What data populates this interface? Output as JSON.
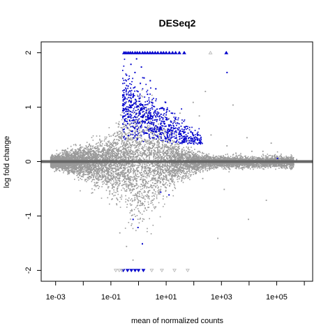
{
  "chart_data": {
    "type": "scatter",
    "title": "DESeq2",
    "xlabel": "mean of normalized counts",
    "ylabel": "log fold change",
    "x_scale": "log10",
    "xlim": [
      0.0003,
      2000000
    ],
    "ylim": [
      -2.2,
      2.2
    ],
    "xticks": [
      0.001,
      0.01,
      0.1,
      1,
      10,
      100,
      1000,
      10000,
      100000,
      1000000
    ],
    "xtick_labels": [
      {
        "value": 0.001,
        "label": "1e-03"
      },
      {
        "value": 0.1,
        "label": "1e-01"
      },
      {
        "value": 10,
        "label": "1e+01"
      },
      {
        "value": 1000,
        "label": "1e+03"
      },
      {
        "value": 100000,
        "label": "1e+05"
      }
    ],
    "yticks": [
      {
        "value": 2,
        "label": "2"
      },
      {
        "value": 1,
        "label": "1"
      },
      {
        "value": 0,
        "label": "0"
      },
      {
        "value": -1,
        "label": "-1"
      },
      {
        "value": -2,
        "label": "-2"
      }
    ],
    "reference_line": {
      "y": 0
    },
    "grid": false,
    "legend": "none",
    "colors": {
      "not_significant": "#9a9a9a",
      "significant": "#0000cc",
      "reference_line": "#666666",
      "open_triangle": "#b0b0b0"
    },
    "series": [
      {
        "points": [
          [
            0.5,
            0.42
          ],
          [
            0.8,
            0.35
          ],
          [
            1.2,
            0.5
          ],
          [
            2,
            0.62
          ],
          [
            3,
            0.55
          ],
          [
            5,
            0.7
          ],
          [
            8,
            0.6
          ],
          [
            12,
            0.8
          ],
          [
            20,
            0.75
          ],
          [
            30,
            0.9
          ],
          [
            60,
            0.4
          ],
          [
            150,
            0.85
          ],
          [
            400,
            0.5
          ],
          [
            1500,
            0.3
          ],
          [
            8000,
            0.45
          ],
          [
            30000,
            0.2
          ],
          [
            0.4,
            -0.45
          ],
          [
            0.8,
            -0.6
          ],
          [
            1.5,
            -0.9
          ],
          [
            3,
            -0.7
          ],
          [
            6,
            -0.5
          ],
          [
            15,
            -0.35
          ],
          [
            40,
            -0.25
          ],
          [
            200,
            -0.3
          ],
          [
            1200,
            -0.5
          ],
          [
            9000,
            -1.05
          ],
          [
            0.3,
            0.3
          ],
          [
            0.3,
            -0.3
          ],
          [
            90,
            1.1
          ],
          [
            250,
            1.3
          ],
          [
            2500,
            1.05
          ],
          [
            12000,
            0.2
          ],
          [
            60000,
            0.35
          ],
          [
            500000,
            0.05
          ],
          [
            0.2,
            -1.3
          ],
          [
            0.35,
            -1.55
          ],
          [
            0.6,
            -1.8
          ],
          [
            700,
            -1.4
          ],
          [
            40000,
            -0.7
          ]
        ]
      },
      {
        "points": [
          [
            0.35,
            1.6
          ],
          [
            0.4,
            1.4
          ],
          [
            0.5,
            1.8
          ],
          [
            0.6,
            1.2
          ],
          [
            0.7,
            1.65
          ],
          [
            0.9,
            1.3
          ],
          [
            1.0,
            0.9
          ],
          [
            1.1,
            1.45
          ],
          [
            1.3,
            1.05
          ],
          [
            1.5,
            1.55
          ],
          [
            1.8,
            0.95
          ],
          [
            2.0,
            1.25
          ],
          [
            2.3,
            0.8
          ],
          [
            2.8,
            1.1
          ],
          [
            3.2,
            0.7
          ],
          [
            3.8,
            0.95
          ],
          [
            4.5,
            0.65
          ],
          [
            5.5,
            0.85
          ],
          [
            6.5,
            0.6
          ],
          [
            8,
            0.75
          ],
          [
            10,
            0.55
          ],
          [
            12,
            0.68
          ],
          [
            15,
            0.5
          ],
          [
            18,
            0.62
          ],
          [
            22,
            0.45
          ],
          [
            28,
            0.55
          ],
          [
            40,
            0.42
          ],
          [
            55,
            0.48
          ],
          [
            80,
            0.4
          ],
          [
            130,
            0.42
          ],
          [
            1.2,
            1.75
          ],
          [
            0.8,
            1.9
          ],
          [
            4,
            1.35
          ],
          [
            9,
            1.1
          ],
          [
            20,
            0.8
          ],
          [
            1500,
            1.65
          ],
          [
            100000,
            0.07
          ],
          [
            0.6,
            -1.05
          ],
          [
            0.9,
            -1.2
          ],
          [
            1.3,
            -1.5
          ],
          [
            6,
            -0.55
          ],
          [
            12,
            -0.6
          ],
          [
            0.45,
            1.05
          ],
          [
            0.3,
            0.85
          ],
          [
            2.5,
            1.5
          ],
          [
            7,
            1.0
          ],
          [
            30,
            0.35
          ],
          [
            16,
            0.9
          ],
          [
            3,
            0.45
          ]
        ]
      },
      {
        "points": [
          [
            0.3,
            2
          ],
          [
            0.35,
            2
          ],
          [
            0.42,
            2
          ],
          [
            0.5,
            2
          ],
          [
            0.6,
            2
          ],
          [
            0.75,
            2
          ],
          [
            0.9,
            2
          ],
          [
            1.1,
            2
          ],
          [
            1.4,
            2
          ],
          [
            1.7,
            2
          ],
          [
            2.1,
            2
          ],
          [
            2.6,
            2
          ],
          [
            3.2,
            2
          ],
          [
            4,
            2
          ],
          [
            5,
            2
          ],
          [
            6.5,
            2
          ],
          [
            8,
            2
          ],
          [
            10,
            2
          ],
          [
            13,
            2
          ],
          [
            17,
            2
          ],
          [
            22,
            2
          ],
          [
            30,
            2
          ],
          [
            45,
            2
          ],
          [
            1500,
            2
          ],
          [
            0.28,
            -2
          ],
          [
            0.4,
            -2
          ],
          [
            0.55,
            -2
          ],
          [
            0.75,
            -2
          ],
          [
            1.0,
            -2
          ],
          [
            1.5,
            -2
          ]
        ]
      },
      {
        "points": [
          [
            0.2,
            -2
          ],
          [
            0.25,
            -2
          ],
          [
            3,
            -2
          ],
          [
            7,
            -2
          ],
          [
            20,
            -2
          ],
          [
            60,
            -2
          ],
          [
            400,
            2
          ],
          [
            0.15,
            -2
          ]
        ]
      }
    ]
  }
}
